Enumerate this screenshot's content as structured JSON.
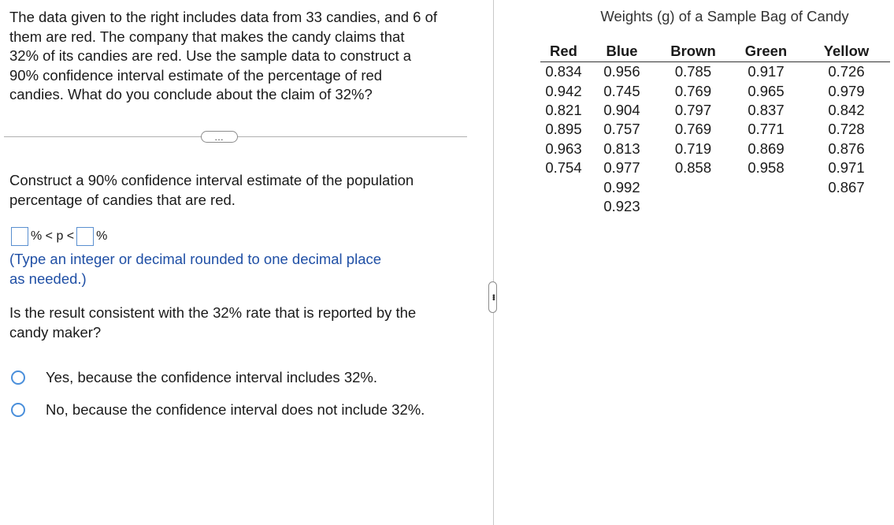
{
  "question": {
    "text": "The data given to the right includes data from 33 candies, and 6 of\nthem are red. The company that makes the candy claims that\n32% of its candies are red. Use the sample data to construct a\n90% confidence interval estimate of the percentage of red\ncandies. What do you conclude about the claim of 32%?"
  },
  "divider": {
    "dots": "…"
  },
  "construct": {
    "text": "Construct a 90% confidence interval estimate of the population\npercentage of candies that are red.",
    "lower_value": "",
    "upper_value": "",
    "between_label": "% < p <",
    "end_label": "%",
    "hint": "(Type an integer or decimal rounded to one decimal place\nas needed.)"
  },
  "consistency": {
    "text": "Is the result consistent with the 32% rate that is reported by the\ncandy maker?",
    "options": [
      {
        "label": "Yes, because the confidence interval includes 32%."
      },
      {
        "label": "No, because the confidence interval does not include 32%."
      }
    ]
  },
  "table": {
    "title": "Weights (g) of a Sample Bag of Candy",
    "headers": [
      "Red",
      "Blue",
      "Brown",
      "Green",
      "Yellow"
    ],
    "rows": [
      [
        "0.834",
        "0.956",
        "0.785",
        "0.917",
        "0.726"
      ],
      [
        "0.942",
        "0.745",
        "0.769",
        "0.965",
        "0.979"
      ],
      [
        "0.821",
        "0.904",
        "0.797",
        "0.837",
        "0.842"
      ],
      [
        "0.895",
        "0.757",
        "0.769",
        "0.771",
        "0.728"
      ],
      [
        "0.963",
        "0.813",
        "0.719",
        "0.869",
        "0.876"
      ],
      [
        "0.754",
        "0.977",
        "0.858",
        "0.958",
        "0.971"
      ],
      [
        "",
        "0.992",
        "",
        "",
        "0.867"
      ],
      [
        "",
        "0.923",
        "",
        "",
        ""
      ]
    ]
  },
  "colors": {
    "hint_text": "#1f4fa5",
    "radio_border": "#4a8fdb",
    "input_border": "#5a8fd0"
  }
}
